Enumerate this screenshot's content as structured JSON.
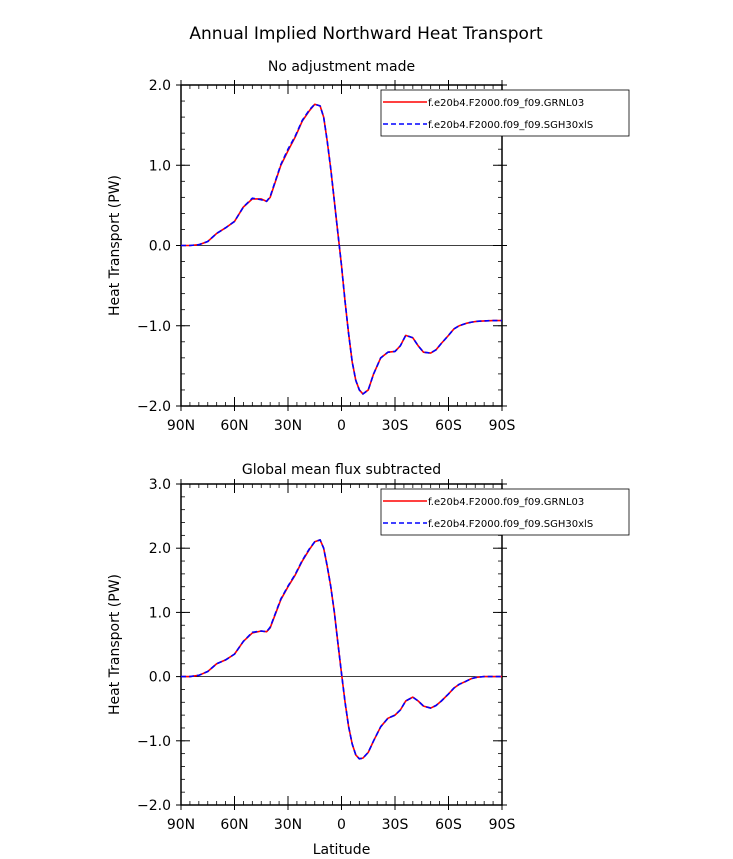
{
  "figure_title": "Annual Implied Northward Heat Transport",
  "chart_data": [
    {
      "type": "line",
      "title": "No adjustment made",
      "xlabel": "",
      "ylabel": "Heat Transport (PW)",
      "xlim": [
        90,
        -90
      ],
      "ylim": [
        -2.0,
        2.0
      ],
      "x_ticks": [
        90,
        60,
        30,
        0,
        -30,
        -60,
        -90
      ],
      "x_tick_labels": [
        "90N",
        "60N",
        "30N",
        "0",
        "30S",
        "60S",
        "90S"
      ],
      "y_ticks": [
        -2.0,
        -1.0,
        0.0,
        1.0,
        2.0
      ],
      "y_tick_labels": [
        "−2.0",
        "−1.0",
        "0.0",
        "1.0",
        "2.0"
      ],
      "zero_line": true,
      "grid": false,
      "legend_position": "top-right",
      "x": [
        90,
        85,
        80,
        75,
        70,
        65,
        60,
        55,
        50,
        45,
        42,
        40,
        37,
        34,
        30,
        26,
        22,
        18,
        15,
        12,
        10,
        8,
        6,
        4,
        2,
        0,
        -2,
        -4,
        -6,
        -8,
        -10,
        -12,
        -15,
        -18,
        -22,
        -26,
        -30,
        -33,
        -36,
        -40,
        -43,
        -46,
        -50,
        -53,
        -56,
        -60,
        -63,
        -66,
        -70,
        -73,
        -76,
        -80,
        -85,
        -90
      ],
      "series": [
        {
          "name": "f.e20b4.F2000.f09_f09.GRNL03",
          "color": "#ff0000",
          "style": "solid",
          "values": [
            0.0,
            0.0,
            0.01,
            0.05,
            0.15,
            0.22,
            0.3,
            0.48,
            0.58,
            0.58,
            0.55,
            0.6,
            0.8,
            1.0,
            1.18,
            1.35,
            1.55,
            1.68,
            1.76,
            1.74,
            1.6,
            1.3,
            0.95,
            0.55,
            0.15,
            -0.25,
            -0.7,
            -1.1,
            -1.45,
            -1.68,
            -1.8,
            -1.85,
            -1.8,
            -1.6,
            -1.4,
            -1.33,
            -1.32,
            -1.25,
            -1.12,
            -1.15,
            -1.25,
            -1.33,
            -1.34,
            -1.3,
            -1.22,
            -1.12,
            -1.04,
            -1.0,
            -0.97,
            -0.955,
            -0.945,
            -0.94,
            -0.935,
            -0.935
          ]
        },
        {
          "name": "f.e20b4.F2000.f09_f09.SGH30xlS",
          "color": "#0000ff",
          "style": "dashed",
          "values": [
            0.0,
            0.0,
            0.01,
            0.05,
            0.15,
            0.22,
            0.3,
            0.48,
            0.59,
            0.57,
            0.55,
            0.61,
            0.81,
            1.01,
            1.2,
            1.36,
            1.56,
            1.69,
            1.76,
            1.74,
            1.6,
            1.3,
            0.95,
            0.55,
            0.15,
            -0.25,
            -0.7,
            -1.1,
            -1.45,
            -1.68,
            -1.8,
            -1.85,
            -1.8,
            -1.6,
            -1.4,
            -1.33,
            -1.32,
            -1.25,
            -1.12,
            -1.15,
            -1.25,
            -1.33,
            -1.34,
            -1.3,
            -1.22,
            -1.12,
            -1.04,
            -1.0,
            -0.97,
            -0.955,
            -0.945,
            -0.94,
            -0.935,
            -0.935
          ]
        }
      ]
    },
    {
      "type": "line",
      "title": "Global mean flux subtracted",
      "xlabel": "Latitude",
      "ylabel": "Heat Transport (PW)",
      "xlim": [
        90,
        -90
      ],
      "ylim": [
        -2.0,
        3.0
      ],
      "x_ticks": [
        90,
        60,
        30,
        0,
        -30,
        -60,
        -90
      ],
      "x_tick_labels": [
        "90N",
        "60N",
        "30N",
        "0",
        "30S",
        "60S",
        "90S"
      ],
      "y_ticks": [
        -2.0,
        -1.0,
        0.0,
        1.0,
        2.0,
        3.0
      ],
      "y_tick_labels": [
        "−2.0",
        "−1.0",
        "0.0",
        "1.0",
        "2.0",
        "3.0"
      ],
      "zero_line": true,
      "grid": false,
      "legend_position": "top-right",
      "x": [
        90,
        85,
        80,
        75,
        70,
        65,
        60,
        55,
        50,
        45,
        42,
        40,
        37,
        34,
        30,
        26,
        22,
        18,
        15,
        12,
        10,
        8,
        6,
        4,
        2,
        0,
        -2,
        -4,
        -6,
        -8,
        -10,
        -12,
        -15,
        -18,
        -22,
        -26,
        -30,
        -33,
        -36,
        -40,
        -43,
        -46,
        -50,
        -53,
        -56,
        -60,
        -63,
        -66,
        -70,
        -73,
        -76,
        -80,
        -85,
        -90
      ],
      "series": [
        {
          "name": "f.e20b4.F2000.f09_f09.GRNL03",
          "color": "#ff0000",
          "style": "solid",
          "values": [
            0.0,
            0.0,
            0.02,
            0.08,
            0.2,
            0.26,
            0.35,
            0.55,
            0.68,
            0.71,
            0.7,
            0.76,
            0.98,
            1.2,
            1.4,
            1.58,
            1.8,
            1.98,
            2.1,
            2.13,
            2.0,
            1.72,
            1.4,
            1.0,
            0.52,
            0.05,
            -0.4,
            -0.78,
            -1.05,
            -1.22,
            -1.28,
            -1.27,
            -1.18,
            -1.0,
            -0.78,
            -0.65,
            -0.6,
            -0.52,
            -0.38,
            -0.32,
            -0.38,
            -0.46,
            -0.49,
            -0.45,
            -0.38,
            -0.27,
            -0.18,
            -0.12,
            -0.07,
            -0.03,
            -0.01,
            0.0,
            0.0,
            0.0
          ]
        },
        {
          "name": "f.e20b4.F2000.f09_f09.SGH30xlS",
          "color": "#0000ff",
          "style": "dashed",
          "values": [
            0.0,
            0.0,
            0.02,
            0.08,
            0.2,
            0.26,
            0.35,
            0.55,
            0.69,
            0.71,
            0.7,
            0.77,
            0.99,
            1.21,
            1.41,
            1.59,
            1.81,
            1.99,
            2.1,
            2.13,
            2.0,
            1.72,
            1.4,
            1.0,
            0.52,
            0.05,
            -0.4,
            -0.78,
            -1.05,
            -1.22,
            -1.28,
            -1.27,
            -1.18,
            -1.0,
            -0.78,
            -0.65,
            -0.6,
            -0.52,
            -0.38,
            -0.32,
            -0.38,
            -0.46,
            -0.49,
            -0.45,
            -0.38,
            -0.27,
            -0.18,
            -0.12,
            -0.07,
            -0.03,
            -0.01,
            0.0,
            0.0,
            0.0
          ]
        }
      ]
    }
  ]
}
